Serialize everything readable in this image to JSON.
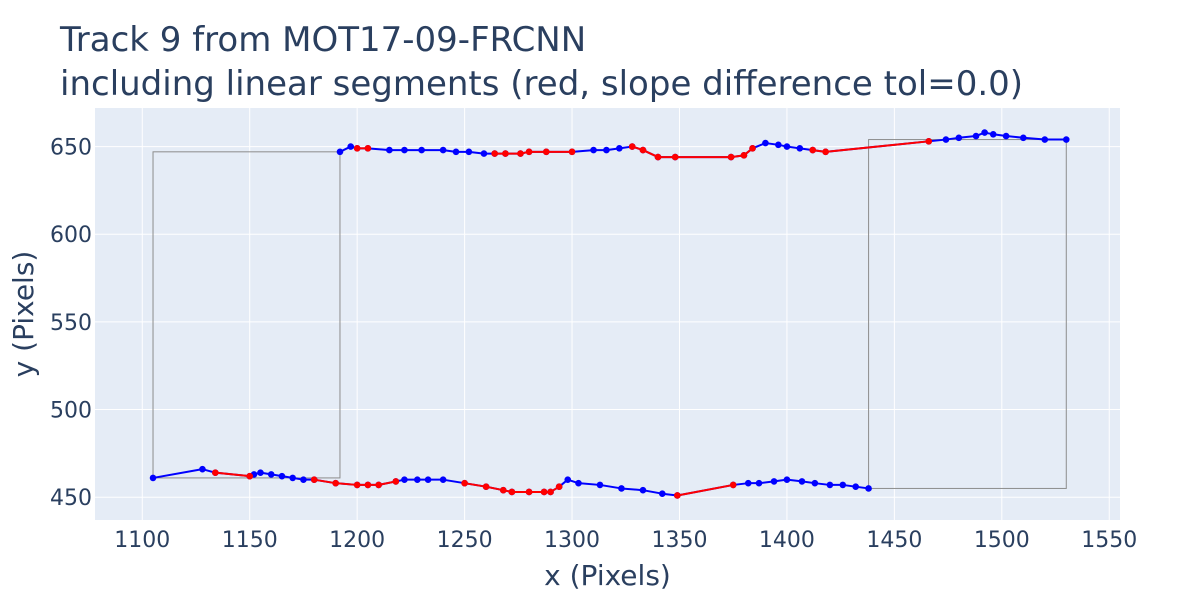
{
  "chart_data": {
    "type": "line",
    "title": "Track 9 from MOT17-09-FRCNN",
    "subtitle": "including linear segments (red, slope difference tol=0.0)",
    "xlabel": "x (Pixels)",
    "ylabel": "y (Pixels)",
    "xlim": [
      1078,
      1555
    ],
    "ylim": [
      437,
      672
    ],
    "xticks": [
      1100,
      1150,
      1200,
      1250,
      1300,
      1350,
      1400,
      1450,
      1500,
      1550
    ],
    "yticks": [
      450,
      500,
      550,
      600,
      650
    ],
    "grid": true,
    "legend": "none",
    "colors": {
      "background": "#e5ecf6",
      "grid": "#ffffff",
      "track": "#0000ff",
      "linear_segment": "#ff0000",
      "box": "#8c8c8c",
      "text": "#2a3f5f"
    },
    "boxes": [
      {
        "x": [
          1105,
          1192
        ],
        "y": [
          461,
          647
        ]
      },
      {
        "x": [
          1438,
          1530
        ],
        "y": [
          455,
          654
        ]
      }
    ],
    "series": [
      {
        "color": "track",
        "x": [
          1105,
          1128,
          1134,
          1150,
          1152,
          1155,
          1160,
          1165,
          1170,
          1175,
          1180,
          1190,
          1200,
          1205,
          1210,
          1218,
          1222,
          1228,
          1233,
          1240,
          1250,
          1260,
          1268,
          1272,
          1280,
          1287,
          1290,
          1294,
          1298,
          1303,
          1313,
          1323,
          1333,
          1342,
          1349,
          1375,
          1382,
          1387,
          1394,
          1400,
          1407,
          1413,
          1420,
          1426,
          1432,
          1438
        ],
        "y": [
          461,
          466,
          464,
          462,
          463,
          464,
          463,
          462,
          461,
          460,
          460,
          458,
          457,
          457,
          457,
          459,
          460,
          460,
          460,
          460,
          458,
          456,
          454,
          453,
          453,
          453,
          453,
          456,
          460,
          458,
          457,
          455,
          454,
          452,
          451,
          457,
          458,
          458,
          459,
          460,
          459,
          458,
          457,
          457,
          456,
          455
        ]
      },
      {
        "color": "linear_segment",
        "x": [
          1134,
          1150
        ],
        "y": [
          464,
          462
        ]
      },
      {
        "color": "linear_segment",
        "x": [
          1180,
          1190,
          1200,
          1205,
          1210,
          1218
        ],
        "y": [
          460,
          458,
          457,
          457,
          457,
          459
        ]
      },
      {
        "color": "linear_segment",
        "x": [
          1250,
          1260,
          1268,
          1272,
          1280,
          1287,
          1290,
          1294
        ],
        "y": [
          458,
          456,
          454,
          453,
          453,
          453,
          453,
          456
        ]
      },
      {
        "color": "linear_segment",
        "x": [
          1349,
          1375
        ],
        "y": [
          451,
          457
        ]
      },
      {
        "color": "track",
        "x": [
          1192,
          1197,
          1200,
          1205,
          1215,
          1222,
          1230,
          1240,
          1246,
          1252,
          1259,
          1264,
          1269,
          1276,
          1280,
          1288,
          1300,
          1310,
          1316,
          1322,
          1328,
          1333,
          1340,
          1348,
          1374,
          1380,
          1384,
          1390,
          1396,
          1400,
          1406,
          1412,
          1418,
          1466,
          1474,
          1480,
          1488,
          1492,
          1496,
          1502,
          1510,
          1520,
          1530
        ],
        "y": [
          647,
          650,
          649,
          649,
          648,
          648,
          648,
          648,
          647,
          647,
          646,
          646,
          646,
          646,
          647,
          647,
          647,
          648,
          648,
          649,
          650,
          648,
          644,
          644,
          644,
          645,
          649,
          652,
          651,
          650,
          649,
          648,
          647,
          653,
          654,
          655,
          656,
          658,
          657,
          656,
          655,
          654,
          654
        ]
      },
      {
        "color": "linear_segment",
        "x": [
          1200,
          1205
        ],
        "y": [
          649,
          649
        ]
      },
      {
        "color": "linear_segment",
        "x": [
          1264,
          1269,
          1276,
          1280,
          1288,
          1300
        ],
        "y": [
          646,
          646,
          646,
          647,
          647,
          647
        ]
      },
      {
        "color": "linear_segment",
        "x": [
          1328,
          1333,
          1340,
          1348,
          1374,
          1380,
          1384
        ],
        "y": [
          650,
          648,
          644,
          644,
          644,
          645,
          649
        ]
      },
      {
        "color": "linear_segment",
        "x": [
          1412,
          1418,
          1466
        ],
        "y": [
          648,
          647,
          653
        ]
      }
    ]
  }
}
